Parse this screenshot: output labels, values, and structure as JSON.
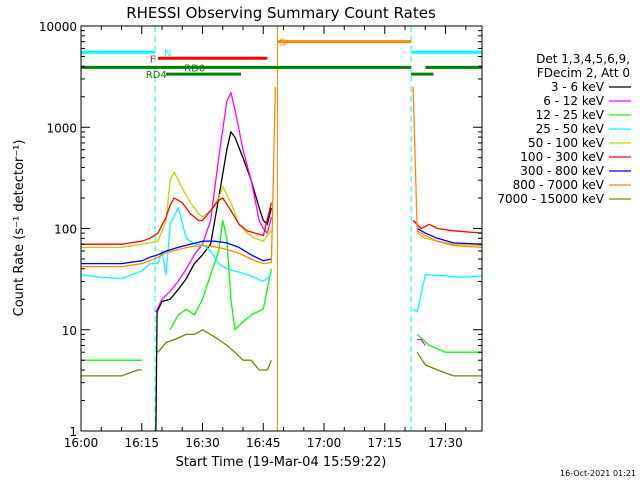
{
  "chart_data": {
    "type": "line",
    "title": "RHESSI Observing Summary Count Rates",
    "xlabel": "Start Time (19-Mar-04 15:59:22)",
    "ylabel": "Count Rate (s⁻¹ detector⁻¹)",
    "ylog": true,
    "ylim": [
      1,
      10000
    ],
    "xlim": [
      0,
      99
    ],
    "x_unit": "minutes after 16:00",
    "x_ticks": [
      {
        "value": 0,
        "label": "16:00"
      },
      {
        "value": 15,
        "label": "16:15"
      },
      {
        "value": 30,
        "label": "16:30"
      },
      {
        "value": 45,
        "label": "16:45"
      },
      {
        "value": 60,
        "label": "17:00"
      },
      {
        "value": 75,
        "label": "17:15"
      },
      {
        "value": 90,
        "label": "17:30"
      }
    ],
    "y_ticks": [
      {
        "value": 1,
        "label": "1"
      },
      {
        "value": 10,
        "label": "10"
      },
      {
        "value": 100,
        "label": "100"
      },
      {
        "value": 1000,
        "label": "1000"
      },
      {
        "value": 10000,
        "label": "10000"
      }
    ],
    "legend": {
      "placement": "right",
      "header": [
        "Det 1,3,4,5,6,9,",
        "FDecim 2, Att 0"
      ]
    },
    "series": [
      {
        "name": "3 - 6 keV",
        "color": "#000000",
        "segments": [
          [
            [
              18.5,
              1
            ],
            [
              18.8,
              15
            ],
            [
              20,
              19
            ],
            [
              22,
              20
            ],
            [
              24,
              25
            ],
            [
              26,
              32
            ],
            [
              28,
              45
            ],
            [
              30,
              55
            ],
            [
              32,
              70
            ],
            [
              34,
              200
            ],
            [
              36,
              600
            ],
            [
              37,
              900
            ],
            [
              38,
              800
            ],
            [
              40,
              500
            ],
            [
              42,
              300
            ],
            [
              44,
              160
            ],
            [
              45,
              120
            ],
            [
              46,
              110
            ],
            [
              47,
              160
            ]
          ]
        ]
      },
      {
        "name": "6 - 12 keV",
        "color": "#ff00ff",
        "segments": [
          [
            [
              18.5,
              15
            ],
            [
              20,
              20
            ],
            [
              22,
              24
            ],
            [
              24,
              30
            ],
            [
              26,
              40
            ],
            [
              28,
              55
            ],
            [
              30,
              70
            ],
            [
              32,
              120
            ],
            [
              34,
              500
            ],
            [
              36,
              1800
            ],
            [
              37,
              2200
            ],
            [
              38,
              1500
            ],
            [
              40,
              600
            ],
            [
              42,
              300
            ],
            [
              44,
              120
            ],
            [
              45,
              100
            ],
            [
              46,
              90
            ],
            [
              47,
              130
            ]
          ],
          [
            [
              83,
              8
            ],
            [
              84,
              8
            ],
            [
              85,
              7
            ]
          ]
        ]
      },
      {
        "name": "12 - 25 keV",
        "color": "#00ff00",
        "segments": [
          [
            [
              0,
              5
            ],
            [
              5,
              5
            ],
            [
              10,
              5
            ],
            [
              14,
              5
            ],
            [
              15,
              5
            ]
          ],
          [
            [
              22,
              10
            ],
            [
              24,
              14
            ],
            [
              26,
              16
            ],
            [
              28,
              14
            ],
            [
              30,
              20
            ],
            [
              32,
              35
            ],
            [
              34,
              60
            ],
            [
              35,
              120
            ],
            [
              36,
              80
            ],
            [
              37,
              20
            ],
            [
              38,
              10
            ],
            [
              40,
              12
            ],
            [
              42,
              14
            ],
            [
              45,
              16
            ],
            [
              47,
              40
            ]
          ],
          [
            [
              83,
              9
            ],
            [
              86,
              7
            ],
            [
              90,
              6
            ],
            [
              94,
              6
            ],
            [
              99,
              6
            ]
          ]
        ]
      },
      {
        "name": "25 - 50 keV",
        "color": "#00ffff",
        "segments": [
          [
            [
              0,
              35
            ],
            [
              5,
              33
            ],
            [
              10,
              32
            ],
            [
              15,
              38
            ],
            [
              17,
              45
            ],
            [
              19,
              45
            ],
            [
              20,
              60
            ],
            [
              21,
              35
            ],
            [
              22,
              110
            ],
            [
              24,
              160
            ],
            [
              26,
              80
            ],
            [
              28,
              70
            ],
            [
              30,
              70
            ],
            [
              32,
              60
            ],
            [
              34,
              45
            ],
            [
              36,
              40
            ],
            [
              38,
              38
            ],
            [
              40,
              36
            ],
            [
              42,
              34
            ],
            [
              45,
              30
            ],
            [
              47,
              35
            ]
          ],
          [
            [
              82,
              16
            ],
            [
              83,
              15
            ],
            [
              85,
              35
            ],
            [
              90,
              34
            ],
            [
              94,
              33
            ],
            [
              99,
              34
            ]
          ]
        ]
      },
      {
        "name": "50 - 100 keV",
        "color": "#cccc00",
        "segments": [
          [
            [
              0,
              65
            ],
            [
              5,
              65
            ],
            [
              10,
              65
            ],
            [
              15,
              70
            ],
            [
              17,
              72
            ],
            [
              19,
              75
            ],
            [
              21,
              120
            ],
            [
              22,
              300
            ],
            [
              23,
              360
            ],
            [
              25,
              250
            ],
            [
              27,
              180
            ],
            [
              29,
              140
            ],
            [
              30,
              130
            ],
            [
              32,
              150
            ],
            [
              34,
              200
            ],
            [
              35,
              260
            ],
            [
              37,
              180
            ],
            [
              39,
              110
            ],
            [
              41,
              90
            ],
            [
              43,
              80
            ],
            [
              45,
              75
            ],
            [
              47,
              95
            ]
          ],
          [
            [
              83,
              90
            ],
            [
              85,
              80
            ],
            [
              88,
              75
            ],
            [
              92,
              70
            ],
            [
              99,
              68
            ]
          ]
        ]
      },
      {
        "name": "100 - 300 keV",
        "color": "#ff0000",
        "segments": [
          [
            [
              0,
              70
            ],
            [
              5,
              70
            ],
            [
              10,
              70
            ],
            [
              15,
              75
            ],
            [
              17,
              80
            ],
            [
              19,
              90
            ],
            [
              21,
              130
            ],
            [
              22,
              170
            ],
            [
              23,
              200
            ],
            [
              25,
              180
            ],
            [
              27,
              140
            ],
            [
              29,
              120
            ],
            [
              30,
              120
            ],
            [
              32,
              150
            ],
            [
              34,
              190
            ],
            [
              35,
              200
            ],
            [
              37,
              150
            ],
            [
              39,
              110
            ],
            [
              41,
              95
            ],
            [
              43,
              90
            ],
            [
              45,
              85
            ],
            [
              47,
              180
            ]
          ],
          [
            [
              82,
              120
            ],
            [
              84,
              100
            ],
            [
              86,
              110
            ],
            [
              88,
              100
            ],
            [
              92,
              95
            ],
            [
              99,
              90
            ]
          ]
        ]
      },
      {
        "name": "300 - 800 keV",
        "color": "#0000ff",
        "segments": [
          [
            [
              0,
              45
            ],
            [
              5,
              45
            ],
            [
              10,
              45
            ],
            [
              15,
              48
            ],
            [
              17,
              52
            ],
            [
              19,
              55
            ],
            [
              21,
              60
            ],
            [
              24,
              65
            ],
            [
              27,
              70
            ],
            [
              30,
              75
            ],
            [
              33,
              75
            ],
            [
              36,
              72
            ],
            [
              39,
              65
            ],
            [
              42,
              55
            ],
            [
              45,
              48
            ],
            [
              47,
              50
            ]
          ],
          [
            [
              83,
              100
            ],
            [
              85,
              90
            ],
            [
              88,
              80
            ],
            [
              92,
              72
            ],
            [
              99,
              70
            ]
          ]
        ]
      },
      {
        "name": "800 - 7000 keV",
        "color": "#ff8800",
        "segments": [
          [
            [
              0,
              42
            ],
            [
              5,
              42
            ],
            [
              10,
              42
            ],
            [
              15,
              45
            ],
            [
              17,
              48
            ],
            [
              19,
              52
            ],
            [
              21,
              58
            ],
            [
              24,
              62
            ],
            [
              27,
              66
            ],
            [
              30,
              68
            ],
            [
              33,
              66
            ],
            [
              36,
              62
            ],
            [
              39,
              57
            ],
            [
              42,
              50
            ],
            [
              45,
              45
            ],
            [
              47,
              46
            ],
            [
              48,
              2500
            ]
          ],
          [
            [
              82,
              2500
            ],
            [
              83,
              95
            ],
            [
              85,
              85
            ],
            [
              88,
              75
            ],
            [
              92,
              68
            ],
            [
              99,
              65
            ]
          ]
        ]
      },
      {
        "name": "7000 - 15000 keV",
        "color": "#808000",
        "segments": [
          [
            [
              0,
              3.5
            ],
            [
              5,
              3.5
            ],
            [
              10,
              3.5
            ],
            [
              14,
              4
            ],
            [
              15,
              4
            ]
          ],
          [
            [
              19,
              6
            ],
            [
              21,
              7.5
            ],
            [
              23,
              8
            ],
            [
              26,
              9
            ],
            [
              28,
              9
            ],
            [
              30,
              10
            ],
            [
              32,
              9
            ],
            [
              34,
              8
            ],
            [
              36,
              7
            ],
            [
              38,
              6
            ],
            [
              40,
              5
            ],
            [
              42,
              5
            ],
            [
              44,
              4
            ],
            [
              46,
              4
            ],
            [
              47,
              5
            ]
          ],
          [
            [
              83,
              6
            ],
            [
              85,
              4.5
            ],
            [
              88,
              4
            ],
            [
              92,
              3.5
            ],
            [
              96,
              3.5
            ],
            [
              99,
              3.5
            ]
          ]
        ]
      }
    ],
    "vertical_lines": [
      {
        "x": 18.3,
        "color": "#00ffff",
        "style": "dashed"
      },
      {
        "x": 48.5,
        "color": "#ff8800",
        "style": "solid"
      },
      {
        "x": 81.5,
        "color": "#00ffff",
        "style": "dashed"
      },
      {
        "x": 99,
        "color": "#00ffff",
        "style": "dashed"
      }
    ],
    "state_bars": [
      {
        "label": "N",
        "color": "#00ffff",
        "y": 5500,
        "spans": [
          [
            0,
            18.3
          ],
          [
            81.5,
            99
          ]
        ],
        "label_x": 20.5
      },
      {
        "label": "F",
        "color": "#ff0000",
        "y": 4800,
        "spans": [
          [
            19,
            46
          ]
        ],
        "label_x": 17
      },
      {
        "label": "S",
        "color": "#ff8800",
        "y": 7000,
        "spans": [
          [
            48.5,
            81.5
          ]
        ],
        "label_x": 49
      },
      {
        "label": "RD0",
        "color": "#008000",
        "y": 3900,
        "spans": [
          [
            0,
            81.5
          ],
          [
            85,
            99
          ]
        ],
        "label_x": 25.5
      },
      {
        "label": "RD4",
        "color": "#008000",
        "y": 3350,
        "spans": [
          [
            21,
            39.5
          ]
        ],
        "label_x": 16
      }
    ],
    "extra_bars": [
      {
        "color": "#008000",
        "y": 3350,
        "spans": [
          [
            81.5,
            87
          ]
        ]
      }
    ],
    "timestamp": "16-Oct-2021 01:21"
  }
}
